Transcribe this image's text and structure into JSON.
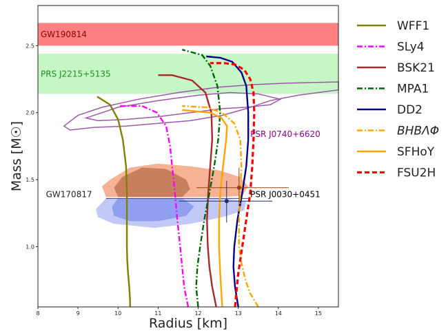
{
  "chart_data": {
    "type": "line",
    "xlabel": "Radius [km]",
    "ylabel": "Mass [M☉]",
    "xlim": [
      8,
      15.5
    ],
    "ylim": [
      0.55,
      2.8
    ],
    "x_ticks": [
      8,
      9,
      10,
      11,
      12,
      13,
      14,
      15
    ],
    "y_ticks": [
      1.0,
      1.5,
      2.0,
      2.5
    ],
    "grid": false,
    "legend": "outside-right",
    "bands": [
      {
        "label": "GW190814",
        "y_range": [
          2.5,
          2.67
        ],
        "color": "#ff8080",
        "label_color": "#8b0000"
      },
      {
        "label": "PRS J2215+5135",
        "y_range": [
          2.14,
          2.44
        ],
        "color": "#c6f5c6",
        "label_color": "#1a8f1a"
      }
    ],
    "annotations": [
      {
        "label": "PSR J0740+6620",
        "x": 13.3,
        "y": 1.82,
        "color": "#8b008b"
      },
      {
        "label": "GW170817",
        "x": 8.2,
        "y": 1.37,
        "color": "#222222"
      },
      {
        "label": "PSR J0030+0451",
        "x": 13.3,
        "y": 1.37,
        "color": "#000000"
      }
    ],
    "error_points": [
      {
        "x": 13.02,
        "y": 1.44,
        "xerr": [
          1.06,
          1.24
        ],
        "yerr": [
          0.14,
          0.15
        ],
        "color": "#8b4513"
      },
      {
        "x": 12.71,
        "y": 1.34,
        "xerr": [
          1.19,
          1.14
        ],
        "yerr": [
          0.16,
          0.15
        ],
        "color": "#1f2f6b"
      }
    ],
    "gw170817_line_y": 1.36,
    "series": [
      {
        "name": "WFF1",
        "color": "#808000",
        "dash": "solid",
        "x": [
          10.3,
          10.3,
          10.28,
          10.25,
          10.23,
          10.22,
          10.22,
          10.22,
          10.2,
          10.12,
          10.0,
          9.8,
          9.48
        ],
        "y": [
          0.55,
          0.6,
          0.7,
          0.8,
          0.9,
          1.0,
          1.2,
          1.4,
          1.6,
          1.8,
          1.95,
          2.06,
          2.12
        ]
      },
      {
        "name": "SLy4",
        "color": "#ff00ff",
        "dash": "dashdot",
        "x": [
          11.75,
          11.65,
          11.6,
          11.55,
          11.48,
          11.42,
          11.35,
          11.3,
          11.2,
          10.97,
          10.6,
          10.0
        ],
        "y": [
          0.55,
          0.7,
          0.85,
          1.0,
          1.2,
          1.4,
          1.6,
          1.75,
          1.9,
          2.0,
          2.05,
          2.05
        ]
      },
      {
        "name": "BSK21",
        "color": "#a52a2a",
        "dash": "solid",
        "x": [
          12.45,
          12.35,
          12.28,
          12.24,
          12.22,
          12.25,
          12.3,
          12.35,
          12.33,
          12.18,
          11.85,
          11.35,
          11.0
        ],
        "y": [
          0.55,
          0.7,
          0.85,
          1.0,
          1.2,
          1.4,
          1.6,
          1.8,
          2.0,
          2.15,
          2.24,
          2.28,
          2.28
        ]
      },
      {
        "name": "MPA1",
        "color": "#006400",
        "dash": "dashdot",
        "x": [
          12.0,
          11.95,
          11.98,
          12.05,
          12.15,
          12.28,
          12.4,
          12.5,
          12.55,
          12.48,
          12.3,
          12.1,
          11.6
        ],
        "y": [
          0.55,
          0.7,
          0.85,
          1.0,
          1.2,
          1.4,
          1.6,
          1.8,
          2.0,
          2.2,
          2.35,
          2.43,
          2.47
        ]
      },
      {
        "name": "DD2",
        "color": "#00008b",
        "dash": "solid",
        "x": [
          13.0,
          12.92,
          12.88,
          12.9,
          12.98,
          13.1,
          13.2,
          13.25,
          13.25,
          13.2,
          13.08,
          12.85,
          12.55,
          12.2
        ],
        "y": [
          0.55,
          0.7,
          0.85,
          1.0,
          1.2,
          1.4,
          1.6,
          1.8,
          2.0,
          2.2,
          2.3,
          2.38,
          2.41,
          2.42
        ]
      },
      {
        "name": "BHBΛΦ",
        "color": "#ffa500",
        "dash": "dashdot",
        "x": [
          13.5,
          13.3,
          13.18,
          13.08,
          13.02,
          13.02,
          13.05,
          13.08,
          13.05,
          12.9,
          12.6,
          12.2,
          11.6
        ],
        "y": [
          0.55,
          0.65,
          0.75,
          0.88,
          1.0,
          1.2,
          1.4,
          1.6,
          1.8,
          1.92,
          2.0,
          2.04,
          2.05
        ]
      },
      {
        "name": "SFHoY",
        "color": "#ffa500",
        "dash": "solid",
        "x": [
          12.6,
          12.58,
          12.55,
          12.52,
          12.52,
          12.55,
          12.62,
          12.7,
          12.72,
          12.58,
          12.3,
          11.6
        ],
        "y": [
          0.55,
          0.65,
          0.8,
          1.0,
          1.2,
          1.4,
          1.6,
          1.8,
          1.9,
          1.96,
          2.0,
          2.02
        ]
      },
      {
        "name": "FSU2H",
        "color": "#ff0000",
        "dash": "dashed",
        "x": [
          12.92,
          12.95,
          13.0,
          13.1,
          13.2,
          13.3,
          13.35,
          13.38,
          13.4,
          13.38,
          13.3,
          13.15,
          12.92,
          12.65,
          12.3
        ],
        "y": [
          0.55,
          0.65,
          0.8,
          1.0,
          1.2,
          1.4,
          1.6,
          1.8,
          2.0,
          2.15,
          2.25,
          2.32,
          2.36,
          2.37,
          2.37
        ]
      }
    ]
  }
}
